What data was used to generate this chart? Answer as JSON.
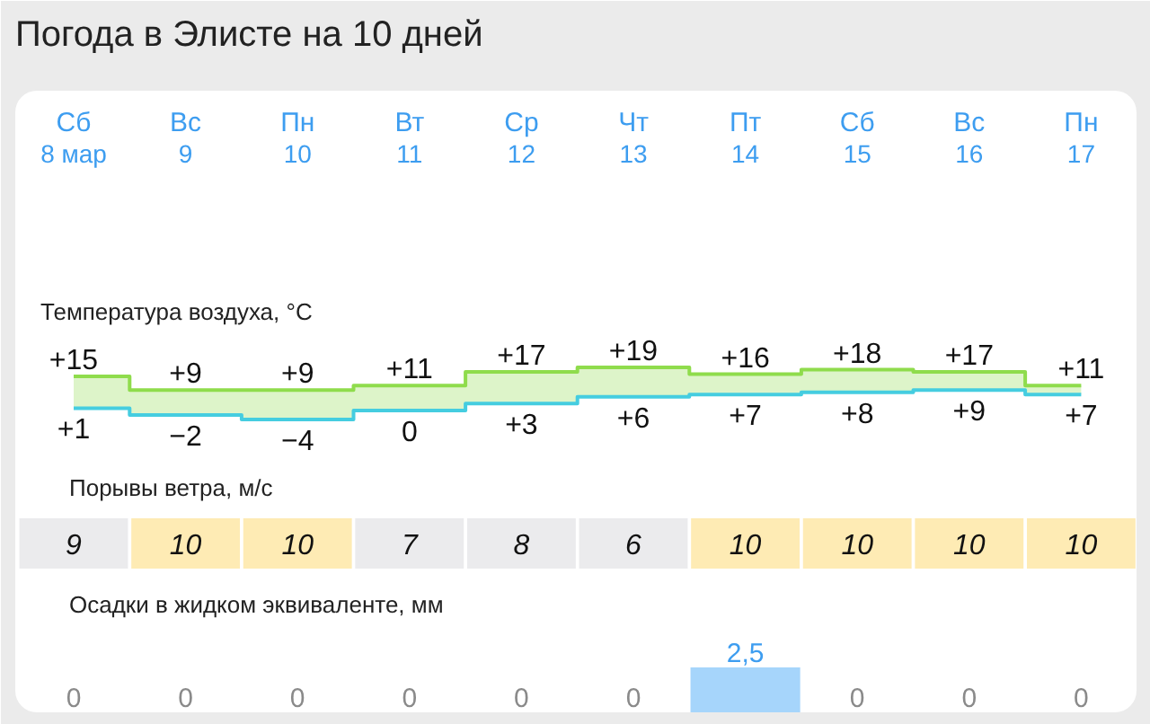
{
  "chart_data": [
    {
      "type": "step",
      "title": "Погода в Элисте на 10 дней",
      "subtitle": "Температура воздуха, °C",
      "categories": [
        "Сб\n8 мар",
        "Вс\n9",
        "Пн\n10",
        "Вт\n11",
        "Ср\n12",
        "Чт\n13",
        "Пт\n14",
        "Сб\n15",
        "Вс\n16",
        "Пн\n17"
      ],
      "series": [
        {
          "color": "#8fdc4c",
          "values": [
            15,
            9,
            9,
            11,
            17,
            19,
            16,
            18,
            17,
            11
          ],
          "value_labels": [
            "+15",
            "+9",
            "+9",
            "+11",
            "+17",
            "+19",
            "+16",
            "+18",
            "+17",
            "+11"
          ],
          "lower": [
            1,
            -2,
            -4,
            0,
            3,
            6,
            7,
            8,
            9,
            7
          ],
          "upper": [
            15,
            9,
            9,
            11,
            17,
            19,
            16,
            18,
            17,
            11
          ]
        },
        {
          "color": "#45cde0",
          "values": [
            1,
            -2,
            -4,
            0,
            3,
            6,
            7,
            8,
            9,
            7
          ],
          "value_labels": [
            "+1",
            "−2",
            "−4",
            "0",
            "+3",
            "+6",
            "+7",
            "+8",
            "+9",
            "+7"
          ]
        }
      ],
      "tick_labels": "x"
    },
    {
      "type": "heatmap",
      "title": "Порывы ветра, м/с",
      "categories": [
        null,
        null,
        null,
        null,
        null,
        null,
        null,
        null,
        null,
        null
      ],
      "y_categories": [
        null
      ],
      "cells": [
        [
          9,
          10,
          10,
          7,
          8,
          6,
          10,
          10,
          10,
          10
        ]
      ],
      "data_labels": true,
      "tick_labels": false
    },
    {
      "type": "bar",
      "title": "Осадки в жидком эквиваленте, мм",
      "categories": [
        null,
        null,
        null,
        null,
        null,
        null,
        null,
        null,
        null,
        null
      ],
      "values": [
        0,
        0,
        0,
        0,
        0,
        0,
        2.5,
        0,
        0,
        0
      ],
      "value_labels": [
        "0",
        "0",
        "0",
        "0",
        "0",
        "0",
        "2,5",
        "0",
        "0",
        "0"
      ],
      "color": "#a6d5fb",
      "tick_labels": false
    }
  ]
}
